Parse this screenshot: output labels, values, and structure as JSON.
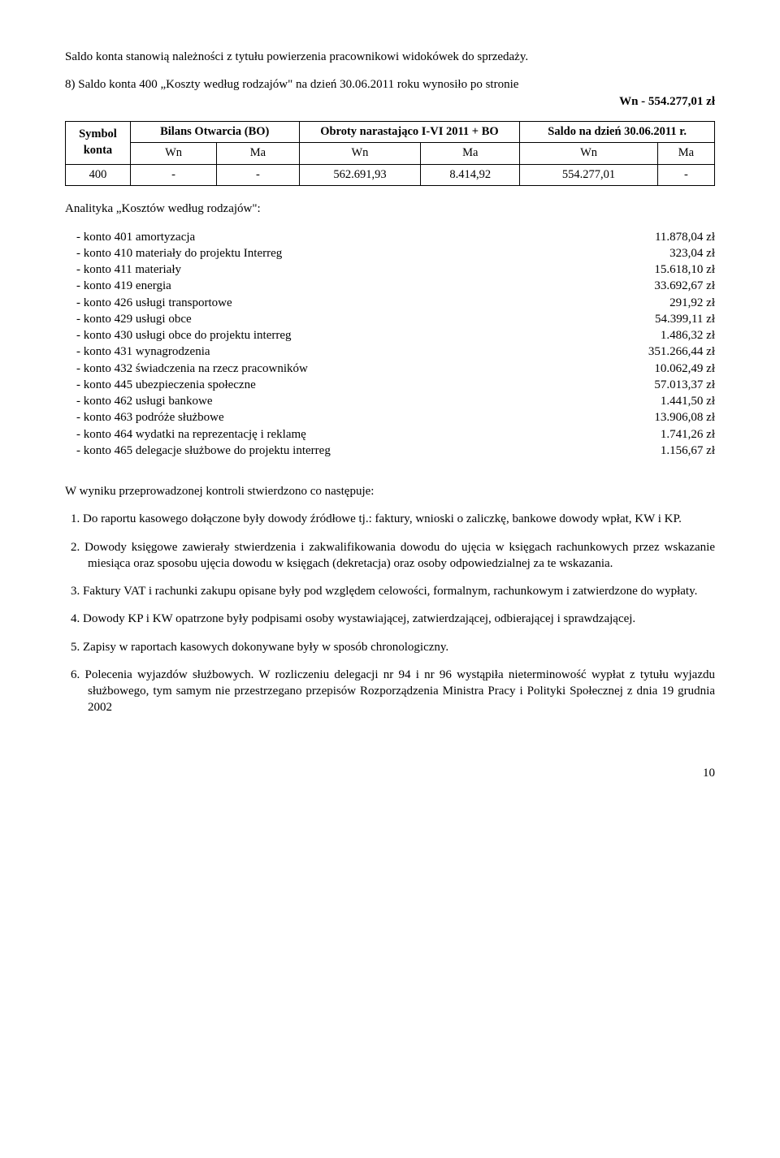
{
  "intro1": "Saldo konta stanowią należności z tytułu powierzenia pracownikowi widokówek do sprzedaży.",
  "intro2": "8) Saldo konta 400 „Koszty według rodzajów\" na dzień 30.06.2011 roku wynosiło  po stronie",
  "intro2_amount": "Wn - 554.277,01 zł",
  "table": {
    "headers": {
      "col1": "Symbol konta",
      "col2": "Bilans Otwarcia (BO)",
      "col3": "Obroty narastająco I-VI 2011 + BO",
      "col4": "Saldo na dzień 30.06.2011 r."
    },
    "subheaders": {
      "wn": "Wn",
      "ma": "Ma"
    },
    "row_account": "400",
    "row_values": [
      "-",
      "-",
      "562.691,93",
      "8.414,92",
      "554.277,01",
      "-"
    ]
  },
  "analityka_title": "Analityka „Kosztów według rodzajów\":",
  "kontos": [
    {
      "label": "-   konto 401 amortyzacja",
      "value": "11.878,04 zł"
    },
    {
      "label": "-   konto 410 materiały do projektu Interreg",
      "value": "323,04 zł"
    },
    {
      "label": "-   konto 411 materiały",
      "value": "15.618,10 zł"
    },
    {
      "label": "-   konto 419 energia",
      "value": "33.692,67 zł"
    },
    {
      "label": "-   konto 426 usługi transportowe",
      "value": "291,92 zł"
    },
    {
      "label": "-   konto 429 usługi obce",
      "value": "54.399,11 zł"
    },
    {
      "label": "-   konto 430 usługi obce do projektu interreg",
      "value": "1.486,32 zł"
    },
    {
      "label": "-   konto 431 wynagrodzenia",
      "value": "351.266,44 zł"
    },
    {
      "label": "-   konto 432 świadczenia na rzecz pracowników",
      "value": "10.062,49 zł"
    },
    {
      "label": "-   konto 445 ubezpieczenia społeczne",
      "value": "57.013,37 zł"
    },
    {
      "label": "-   konto 462 usługi bankowe",
      "value": "1.441,50 zł"
    },
    {
      "label": "-   konto 463 podróże służbowe",
      "value": "13.906,08 zł"
    },
    {
      "label": "-   konto 464 wydatki na reprezentację i reklamę",
      "value": "1.741,26 zł"
    },
    {
      "label": "-   konto 465 delegacje służbowe do projektu interreg",
      "value": "1.156,67 zł"
    }
  ],
  "findings_intro": "W wyniku przeprowadzonej kontroli stwierdzono co następuje:",
  "findings": [
    "1.  Do raportu kasowego dołączone były dowody źródłowe tj.: faktury, wnioski o zaliczkę, bankowe dowody wpłat, KW i KP.",
    "2.  Dowody księgowe zawierały stwierdzenia i zakwalifikowania dowodu do ujęcia w księgach rachunkowych przez wskazanie miesiąca oraz sposobu ujęcia dowodu w księgach (dekretacja) oraz osoby odpowiedzialnej za te wskazania.",
    "3.  Faktury VAT i rachunki zakupu opisane były pod względem celowości, formalnym, rachunkowym i zatwierdzone do wypłaty.",
    "4.  Dowody KP i KW opatrzone były podpisami osoby wystawiającej, zatwierdzającej, odbierającej i sprawdzającej.",
    "5.  Zapisy w raportach kasowych dokonywane były w sposób chronologiczny.",
    "6.  Polecenia wyjazdów służbowych. W rozliczeniu delegacji nr 94 i nr 96 wystąpiła nieterminowość wypłat z tytułu wyjazdu służbowego, tym samym nie przestrzegano przepisów Rozporządzenia Ministra Pracy i Polityki Społecznej z dnia 19 grudnia 2002"
  ],
  "page_number": "10"
}
